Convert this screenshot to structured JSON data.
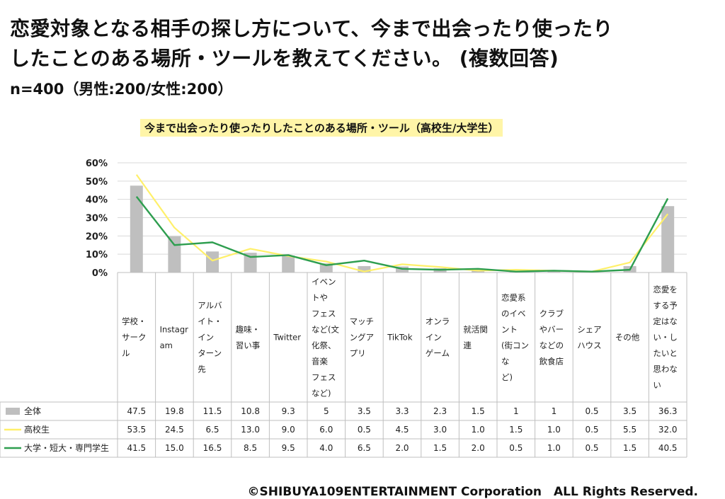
{
  "question": {
    "line1": "恋愛対象となる相手の探し方について、今まで出会ったり使ったり",
    "line2": "したことのある場所・ツールを教えてください。 (複数回答)"
  },
  "sample": "n=400（男性:200/女性:200）",
  "copyright": "©SHIBUYA109ENTERTAINMENT Corporation　ALL Rights Reserved.",
  "chart_data": {
    "type": "bar",
    "title": "今まで出会ったり使ったりしたことのある場所・ツール（高校生/大学生）",
    "ylim": [
      0,
      60
    ],
    "yticks": [
      "0%",
      "10%",
      "20%",
      "30%",
      "40%",
      "50%",
      "60%"
    ],
    "grid": true,
    "categories": [
      [
        "学校・",
        "サーク",
        "ル"
      ],
      [
        "Instagr",
        "am"
      ],
      [
        "アルバ",
        "イト・",
        "イン",
        "ターン",
        "先"
      ],
      [
        "趣味・",
        "習い事"
      ],
      [
        "Twitter"
      ],
      [
        "イベン",
        "トや",
        "フェス",
        "など(文",
        "化祭、",
        "音楽",
        "フェス",
        "など)"
      ],
      [
        "マッチ",
        "ングア",
        "プリ"
      ],
      [
        "TikTok"
      ],
      [
        "オンラ",
        "イン",
        "ゲーム"
      ],
      [
        "就活関",
        "連"
      ],
      [
        "恋愛系",
        "のイベ",
        "ント",
        "(街コン",
        "な",
        "ど)"
      ],
      [
        "クラブ",
        "やバー",
        "などの",
        "飲食店"
      ],
      [
        "シェア",
        "ハウス"
      ],
      [
        "その他"
      ],
      [
        "恋愛を",
        "する予",
        "定はな",
        "い・し",
        "たいと",
        "思わな",
        "い"
      ]
    ],
    "series": [
      {
        "name": "全体",
        "kind": "bar",
        "color": "#bfbfbf",
        "values": [
          47.5,
          19.8,
          11.5,
          10.8,
          9.3,
          5,
          3.5,
          3.3,
          2.3,
          1.5,
          1,
          1,
          0.5,
          3.5,
          36.3
        ],
        "labels": [
          "47.5",
          "19.8",
          "11.5",
          "10.8",
          "9.3",
          "5",
          "3.5",
          "3.3",
          "2.3",
          "1.5",
          "1",
          "1",
          "0.5",
          "3.5",
          "36.3"
        ]
      },
      {
        "name": "高校生",
        "kind": "line",
        "color": "#fff06a",
        "values": [
          53.5,
          24.5,
          6.5,
          13.0,
          9.0,
          6.0,
          0.5,
          4.5,
          3.0,
          1.0,
          1.5,
          1.0,
          0.5,
          5.5,
          32.0
        ],
        "labels": [
          "53.5",
          "24.5",
          "6.5",
          "13.0",
          "9.0",
          "6.0",
          "0.5",
          "4.5",
          "3.0",
          "1.0",
          "1.5",
          "1.0",
          "0.5",
          "5.5",
          "32.0"
        ]
      },
      {
        "name": "大学・短大・専門学生",
        "kind": "line",
        "color": "#2e9e4f",
        "values": [
          41.5,
          15.0,
          16.5,
          8.5,
          9.5,
          4.0,
          6.5,
          2.0,
          1.5,
          2.0,
          0.5,
          1.0,
          0.5,
          1.5,
          40.5
        ],
        "labels": [
          "41.5",
          "15.0",
          "16.5",
          "8.5",
          "9.5",
          "4.0",
          "6.5",
          "2.0",
          "1.5",
          "2.0",
          "0.5",
          "1.0",
          "0.5",
          "1.5",
          "40.5"
        ]
      }
    ]
  }
}
